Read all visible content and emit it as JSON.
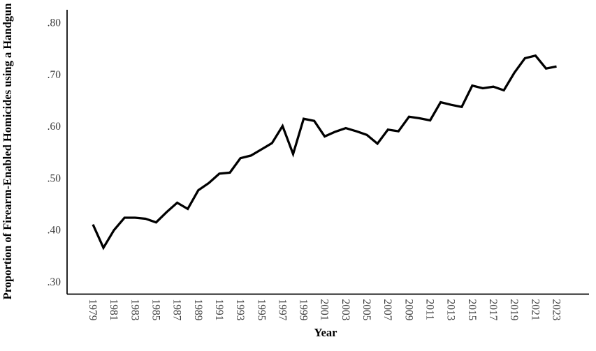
{
  "figure": {
    "background_color": "#ffffff",
    "line_color": "#000000",
    "axis_color": "#000000",
    "tick_label_color": "#3a3a3a"
  },
  "chart_data": {
    "type": "line",
    "title": "",
    "xlabel": "Year",
    "ylabel": "Proportion of Firearm-Enabled Homicides using a Handgun",
    "grid": false,
    "legend": "none",
    "markers": false,
    "xlim": [
      1976.55,
      2026.08
    ],
    "ylim": [
      0.2755,
      0.8245
    ],
    "x": [
      1979,
      1980,
      1981,
      1982,
      1983,
      1984,
      1985,
      1986,
      1987,
      1988,
      1989,
      1990,
      1991,
      1992,
      1993,
      1994,
      1995,
      1996,
      1997,
      1998,
      1999,
      2000,
      2001,
      2002,
      2003,
      2004,
      2005,
      2006,
      2007,
      2008,
      2009,
      2010,
      2011,
      2012,
      2013,
      2014,
      2015,
      2016,
      2017,
      2018,
      2019,
      2020,
      2021,
      2022,
      2023
    ],
    "values": [
      0.41,
      0.365,
      0.399,
      0.423,
      0.423,
      0.421,
      0.414,
      0.434,
      0.452,
      0.44,
      0.476,
      0.49,
      0.508,
      0.51,
      0.538,
      0.543,
      0.555,
      0.567,
      0.6,
      0.546,
      0.614,
      0.61,
      0.58,
      0.589,
      0.596,
      0.59,
      0.583,
      0.566,
      0.593,
      0.59,
      0.618,
      0.615,
      0.611,
      0.646,
      0.641,
      0.637,
      0.678,
      0.673,
      0.676,
      0.669,
      0.703,
      0.731,
      0.736,
      0.711,
      0.715
    ],
    "yticks": {
      "values": [
        0.3,
        0.4,
        0.5,
        0.6,
        0.7,
        0.8
      ],
      "labels": [
        ".30",
        ".40",
        ".50",
        ".60",
        ".70",
        ".80"
      ]
    },
    "xticks": {
      "values": [
        1979,
        1981,
        1983,
        1985,
        1987,
        1989,
        1991,
        1993,
        1995,
        1997,
        1999,
        2001,
        2003,
        2005,
        2007,
        2009,
        2011,
        2013,
        2015,
        2017,
        2019,
        2021,
        2023
      ],
      "labels": [
        "1979",
        "1981",
        "1983",
        "1985",
        "1987",
        "1989",
        "1991",
        "1993",
        "1995",
        "1997",
        "1999",
        "2001",
        "2003",
        "2005",
        "2007",
        "2009",
        "2011",
        "2013",
        "2015",
        "2017",
        "2019",
        "2021",
        "2023"
      ]
    }
  }
}
